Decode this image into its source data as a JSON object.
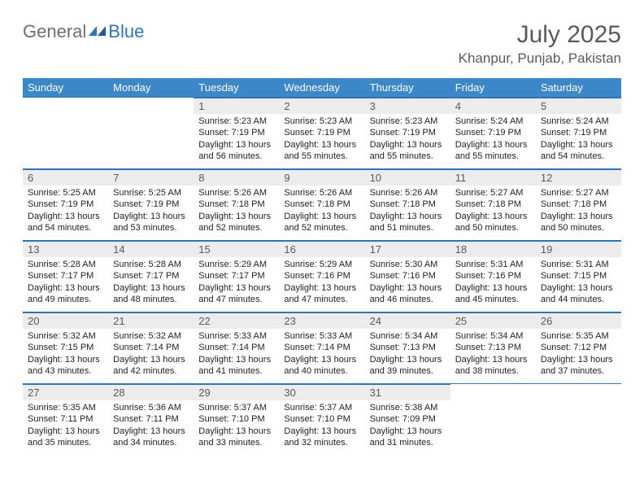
{
  "logo": {
    "part1": "General",
    "part2": "Blue"
  },
  "title": "July 2025",
  "location": "Khanpur, Punjab, Pakistan",
  "weekdays": [
    "Sunday",
    "Monday",
    "Tuesday",
    "Wednesday",
    "Thursday",
    "Friday",
    "Saturday"
  ],
  "colors": {
    "header_bg": "#3c87c7",
    "accent": "#2e75b6",
    "daynum_bg": "#ececec",
    "text_muted": "#5a5a5a"
  },
  "days": {
    "1": {
      "sunrise": "5:23 AM",
      "sunset": "7:19 PM",
      "daylight": "13 hours and 56 minutes."
    },
    "2": {
      "sunrise": "5:23 AM",
      "sunset": "7:19 PM",
      "daylight": "13 hours and 55 minutes."
    },
    "3": {
      "sunrise": "5:23 AM",
      "sunset": "7:19 PM",
      "daylight": "13 hours and 55 minutes."
    },
    "4": {
      "sunrise": "5:24 AM",
      "sunset": "7:19 PM",
      "daylight": "13 hours and 55 minutes."
    },
    "5": {
      "sunrise": "5:24 AM",
      "sunset": "7:19 PM",
      "daylight": "13 hours and 54 minutes."
    },
    "6": {
      "sunrise": "5:25 AM",
      "sunset": "7:19 PM",
      "daylight": "13 hours and 54 minutes."
    },
    "7": {
      "sunrise": "5:25 AM",
      "sunset": "7:19 PM",
      "daylight": "13 hours and 53 minutes."
    },
    "8": {
      "sunrise": "5:26 AM",
      "sunset": "7:18 PM",
      "daylight": "13 hours and 52 minutes."
    },
    "9": {
      "sunrise": "5:26 AM",
      "sunset": "7:18 PM",
      "daylight": "13 hours and 52 minutes."
    },
    "10": {
      "sunrise": "5:26 AM",
      "sunset": "7:18 PM",
      "daylight": "13 hours and 51 minutes."
    },
    "11": {
      "sunrise": "5:27 AM",
      "sunset": "7:18 PM",
      "daylight": "13 hours and 50 minutes."
    },
    "12": {
      "sunrise": "5:27 AM",
      "sunset": "7:18 PM",
      "daylight": "13 hours and 50 minutes."
    },
    "13": {
      "sunrise": "5:28 AM",
      "sunset": "7:17 PM",
      "daylight": "13 hours and 49 minutes."
    },
    "14": {
      "sunrise": "5:28 AM",
      "sunset": "7:17 PM",
      "daylight": "13 hours and 48 minutes."
    },
    "15": {
      "sunrise": "5:29 AM",
      "sunset": "7:17 PM",
      "daylight": "13 hours and 47 minutes."
    },
    "16": {
      "sunrise": "5:29 AM",
      "sunset": "7:16 PM",
      "daylight": "13 hours and 47 minutes."
    },
    "17": {
      "sunrise": "5:30 AM",
      "sunset": "7:16 PM",
      "daylight": "13 hours and 46 minutes."
    },
    "18": {
      "sunrise": "5:31 AM",
      "sunset": "7:16 PM",
      "daylight": "13 hours and 45 minutes."
    },
    "19": {
      "sunrise": "5:31 AM",
      "sunset": "7:15 PM",
      "daylight": "13 hours and 44 minutes."
    },
    "20": {
      "sunrise": "5:32 AM",
      "sunset": "7:15 PM",
      "daylight": "13 hours and 43 minutes."
    },
    "21": {
      "sunrise": "5:32 AM",
      "sunset": "7:14 PM",
      "daylight": "13 hours and 42 minutes."
    },
    "22": {
      "sunrise": "5:33 AM",
      "sunset": "7:14 PM",
      "daylight": "13 hours and 41 minutes."
    },
    "23": {
      "sunrise": "5:33 AM",
      "sunset": "7:14 PM",
      "daylight": "13 hours and 40 minutes."
    },
    "24": {
      "sunrise": "5:34 AM",
      "sunset": "7:13 PM",
      "daylight": "13 hours and 39 minutes."
    },
    "25": {
      "sunrise": "5:34 AM",
      "sunset": "7:13 PM",
      "daylight": "13 hours and 38 minutes."
    },
    "26": {
      "sunrise": "5:35 AM",
      "sunset": "7:12 PM",
      "daylight": "13 hours and 37 minutes."
    },
    "27": {
      "sunrise": "5:35 AM",
      "sunset": "7:11 PM",
      "daylight": "13 hours and 35 minutes."
    },
    "28": {
      "sunrise": "5:36 AM",
      "sunset": "7:11 PM",
      "daylight": "13 hours and 34 minutes."
    },
    "29": {
      "sunrise": "5:37 AM",
      "sunset": "7:10 PM",
      "daylight": "13 hours and 33 minutes."
    },
    "30": {
      "sunrise": "5:37 AM",
      "sunset": "7:10 PM",
      "daylight": "13 hours and 32 minutes."
    },
    "31": {
      "sunrise": "5:38 AM",
      "sunset": "7:09 PM",
      "daylight": "13 hours and 31 minutes."
    }
  },
  "grid": [
    [
      null,
      null,
      1,
      2,
      3,
      4,
      5
    ],
    [
      6,
      7,
      8,
      9,
      10,
      11,
      12
    ],
    [
      13,
      14,
      15,
      16,
      17,
      18,
      19
    ],
    [
      20,
      21,
      22,
      23,
      24,
      25,
      26
    ],
    [
      27,
      28,
      29,
      30,
      31,
      null,
      null
    ]
  ],
  "labels": {
    "sunrise": "Sunrise:",
    "sunset": "Sunset:",
    "daylight": "Daylight:"
  }
}
